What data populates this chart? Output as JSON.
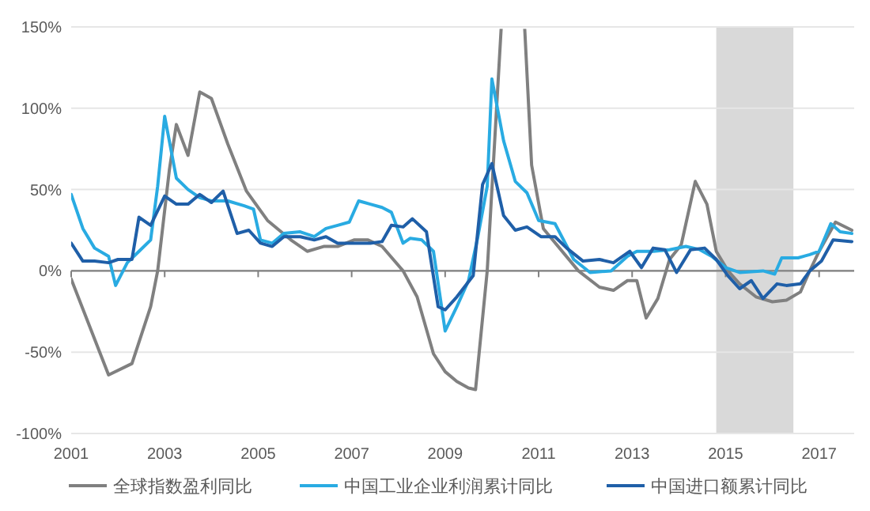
{
  "chart_data": {
    "type": "line",
    "xlim": [
      2001,
      2017.75
    ],
    "xticks": [
      2001,
      2003,
      2005,
      2007,
      2009,
      2011,
      2013,
      2015,
      2017
    ],
    "ylim": [
      -100,
      150
    ],
    "yticks": [
      {
        "value": -100,
        "label": "-100%"
      },
      {
        "value": -50,
        "label": "-50%"
      },
      {
        "value": 0,
        "label": "0%"
      },
      {
        "value": 50,
        "label": "50%"
      },
      {
        "value": 100,
        "label": "100%"
      },
      {
        "value": 150,
        "label": "150%"
      }
    ],
    "grid": "y",
    "legend": "bottom",
    "marker": "none",
    "line_style": "solid",
    "bands": [
      {
        "axis": "x",
        "from": 2014.8,
        "to": 2016.45,
        "color": "#d9d9d9"
      }
    ],
    "series": [
      {
        "name": "全球指数盈利同比",
        "color": "#808080",
        "x": [
          2001,
          2001.8,
          2002.3,
          2002.7,
          2002.85,
          2003.1,
          2003.25,
          2003.5,
          2003.75,
          2004,
          2004.35,
          2004.75,
          2005.2,
          2005.7,
          2006.05,
          2006.4,
          2006.7,
          2007.05,
          2007.35,
          2007.65,
          2008.1,
          2008.4,
          2008.75,
          2009,
          2009.25,
          2009.5,
          2009.65,
          2009.9,
          2010.2,
          2010.7,
          2010.85,
          2011.1,
          2011.85,
          2012.3,
          2012.6,
          2012.9,
          2013.1,
          2013.3,
          2013.55,
          2013.8,
          2014.05,
          2014.35,
          2014.6,
          2014.8,
          2015.05,
          2015.3,
          2015.65,
          2016,
          2016.3,
          2016.6,
          2016.8,
          2017,
          2017.35,
          2017.7
        ],
        "values": [
          -5,
          -64,
          -57,
          -22,
          0,
          62,
          90,
          71,
          110,
          106,
          78,
          49,
          31,
          19,
          12,
          15,
          15,
          19,
          19,
          15,
          0,
          -16,
          -51,
          -62,
          -68,
          -72,
          -73,
          0,
          150,
          150,
          65,
          26,
          0,
          -10,
          -12,
          -6,
          -6,
          -29,
          -17,
          7,
          16,
          55,
          41,
          12,
          0,
          -8,
          -16,
          -19,
          -18,
          -13,
          0,
          12,
          30,
          25
        ]
      },
      {
        "name": "中国工业企业利润累计同比",
        "color": "#29abe2",
        "x": [
          2001,
          2001.25,
          2001.5,
          2001.8,
          2001.95,
          2002.2,
          2002.45,
          2002.7,
          2002.85,
          2003,
          2003.25,
          2003.5,
          2003.75,
          2004,
          2004.35,
          2004.7,
          2004.9,
          2005.05,
          2005.3,
          2005.55,
          2005.9,
          2006.2,
          2006.45,
          2006.7,
          2006.95,
          2007.15,
          2007.4,
          2007.65,
          2007.85,
          2008.1,
          2008.25,
          2008.5,
          2008.75,
          2009,
          2009.25,
          2009.5,
          2009.7,
          2009.9,
          2010,
          2010.25,
          2010.5,
          2010.75,
          2011,
          2011.35,
          2011.75,
          2012.1,
          2012.55,
          2012.9,
          2013.1,
          2013.45,
          2013.8,
          2014.15,
          2014.45,
          2014.7,
          2015,
          2015.3,
          2015.8,
          2016.05,
          2016.2,
          2016.55,
          2016.8,
          2017,
          2017.25,
          2017.45,
          2017.7
        ],
        "values": [
          47,
          26,
          14,
          9,
          -9,
          5,
          12,
          19,
          52,
          95,
          57,
          50,
          45,
          43,
          43,
          40,
          38,
          19,
          17,
          23,
          24,
          21,
          26,
          28,
          30,
          43,
          41,
          39,
          36,
          17,
          20,
          19,
          12,
          -37,
          -22,
          -6,
          21,
          52,
          118,
          80,
          55,
          48,
          31,
          29,
          7,
          -1,
          0,
          9,
          12,
          12,
          13,
          15,
          13,
          9,
          2,
          -1,
          0,
          -2,
          8,
          8,
          10,
          12,
          29,
          24,
          23
        ]
      },
      {
        "name": "中国进口额累计同比",
        "color": "#1f5fa8",
        "x": [
          2001,
          2001.25,
          2001.5,
          2001.8,
          2002,
          2002.3,
          2002.45,
          2002.7,
          2003,
          2003.25,
          2003.5,
          2003.75,
          2004,
          2004.25,
          2004.55,
          2004.8,
          2005.05,
          2005.3,
          2005.55,
          2005.9,
          2006.2,
          2006.45,
          2006.7,
          2007.05,
          2007.4,
          2007.65,
          2007.85,
          2008.1,
          2008.3,
          2008.6,
          2008.85,
          2009,
          2009.25,
          2009.6,
          2009.8,
          2010,
          2010.25,
          2010.5,
          2010.75,
          2011.05,
          2011.35,
          2011.6,
          2011.95,
          2012.3,
          2012.6,
          2012.95,
          2013.2,
          2013.45,
          2013.7,
          2013.95,
          2014.25,
          2014.55,
          2014.8,
          2015.05,
          2015.3,
          2015.55,
          2015.8,
          2016.1,
          2016.3,
          2016.6,
          2016.8,
          2017.05,
          2017.3,
          2017.7
        ],
        "values": [
          17,
          6,
          6,
          5,
          7,
          7,
          33,
          28,
          46,
          41,
          41,
          47,
          42,
          49,
          23,
          25,
          17,
          15,
          21,
          21,
          19,
          21,
          17,
          17,
          17,
          18,
          28,
          27,
          32,
          24,
          -22,
          -24,
          -16,
          -3,
          53,
          66,
          34,
          25,
          27,
          21,
          21,
          14,
          6,
          7,
          5,
          12,
          2,
          14,
          13,
          -1,
          13,
          14,
          7,
          -3,
          -11,
          -6,
          -17,
          -8,
          -9,
          -8,
          0,
          6,
          19,
          18
        ]
      }
    ]
  }
}
